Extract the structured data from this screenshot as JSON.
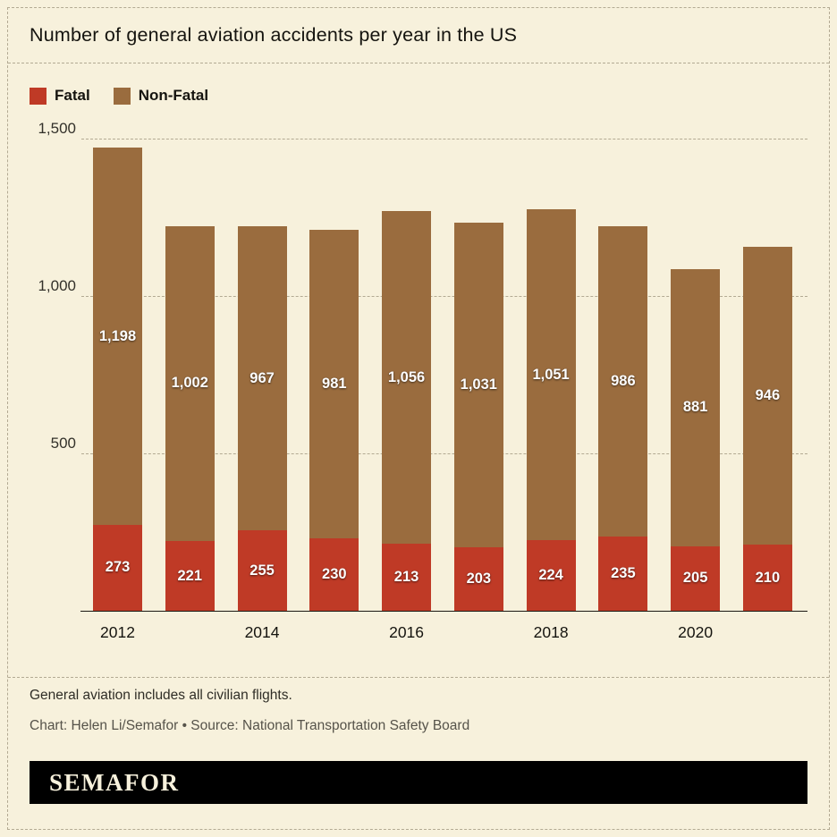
{
  "title": "Number of general aviation accidents per year in the US",
  "legend": {
    "items": [
      {
        "label": "Fatal",
        "color": "#bf3a26"
      },
      {
        "label": "Non-Fatal",
        "color": "#9a6c3e"
      }
    ]
  },
  "chart_data": {
    "type": "bar",
    "stacked": true,
    "title": "Number of general aviation accidents per year in the US",
    "categories": [
      "2012",
      "2013",
      "2014",
      "2015",
      "2016",
      "2017",
      "2018",
      "2019",
      "2020",
      "2021"
    ],
    "x_tick_labels": [
      "2012",
      "",
      "2014",
      "",
      "2016",
      "",
      "2018",
      "",
      "2020",
      ""
    ],
    "series": [
      {
        "name": "Fatal",
        "color": "#bf3a26",
        "values": [
          273,
          221,
          255,
          230,
          213,
          203,
          224,
          235,
          205,
          210
        ],
        "labels": [
          "273",
          "221",
          "255",
          "230",
          "213",
          "203",
          "224",
          "235",
          "205",
          "210"
        ]
      },
      {
        "name": "Non-Fatal",
        "color": "#9a6c3e",
        "values": [
          1198,
          1002,
          967,
          981,
          1056,
          1031,
          1051,
          986,
          881,
          946
        ],
        "labels": [
          "1,198",
          "1,002",
          "967",
          "981",
          "1,056",
          "1,031",
          "1,051",
          "986",
          "881",
          "946"
        ]
      }
    ],
    "ylim": [
      0,
      1500
    ],
    "yticks": [
      {
        "value": 500,
        "label": "500"
      },
      {
        "value": 1000,
        "label": "1,000"
      },
      {
        "value": 1500,
        "label": "1,500"
      }
    ],
    "grid": "dashed horizontal gridlines",
    "legend_position": "top-left"
  },
  "footer": {
    "note": "General aviation includes all civilian flights.",
    "credit": "Chart: Helen Li/Semafor • Source: National Transportation Safety Board"
  },
  "brand": {
    "logo_text": "SEMAFOR"
  },
  "colors": {
    "background": "#f7f1dc",
    "fatal": "#bf3a26",
    "nonfatal": "#9a6c3e",
    "grid": "#b3aa93",
    "axis": "#1a1913",
    "logo_bg": "#000000",
    "logo_text": "#f7f1dc"
  }
}
